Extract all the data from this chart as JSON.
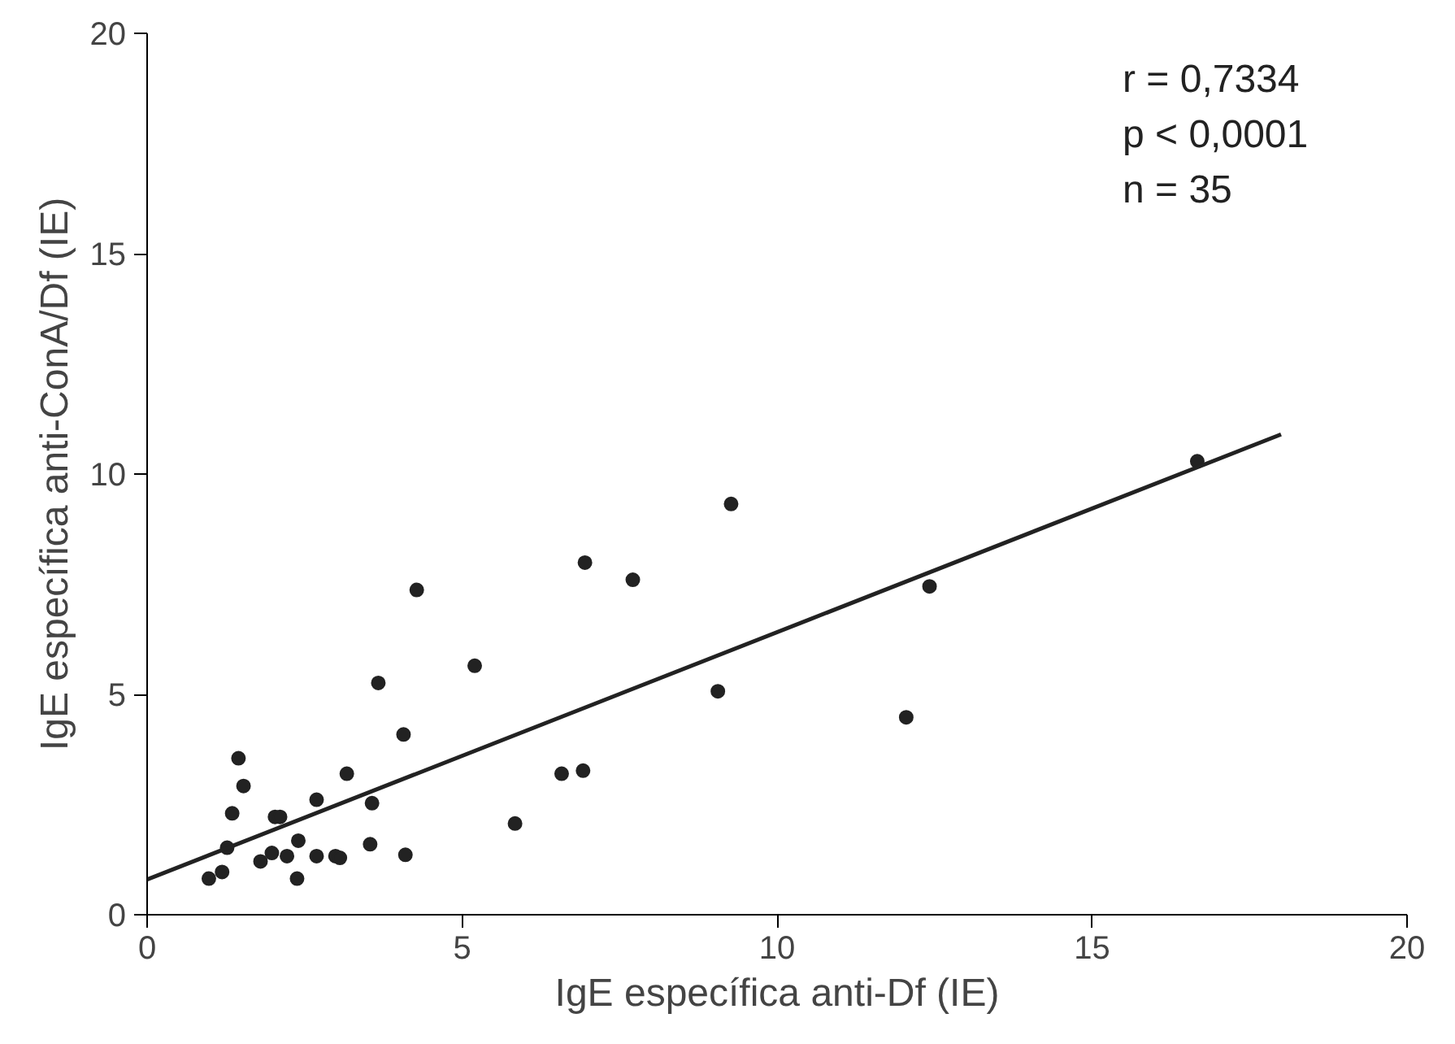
{
  "chart_data": {
    "type": "scatter",
    "xlabel": "IgE específica anti-Df (IE)",
    "ylabel": "IgE específica anti-ConA/Df (IE)",
    "xlim": [
      0,
      20
    ],
    "ylim": [
      0,
      20
    ],
    "xticks": [
      0,
      5,
      10,
      15,
      20
    ],
    "yticks": [
      0,
      5,
      10,
      15,
      20
    ],
    "grid": false,
    "marker": "circle",
    "annotations": [
      "r = 0,7334",
      "p < 0,0001",
      "n = 35"
    ],
    "series": [
      {
        "color": "#222222",
        "x": [
          0.98,
          1.19,
          1.27,
          1.35,
          1.45,
          1.53,
          1.8,
          1.98,
          2.03,
          2.11,
          2.22,
          2.38,
          2.4,
          2.69,
          2.69,
          2.99,
          3.06,
          3.17,
          3.54,
          3.57,
          3.67,
          4.07,
          4.1,
          5.2,
          5.84,
          6.58,
          6.92,
          6.95,
          7.71,
          9.27,
          4.28,
          9.06,
          12.42,
          12.05,
          16.67
        ],
        "values": [
          0.82,
          0.97,
          1.52,
          2.3,
          3.55,
          2.92,
          1.21,
          1.4,
          2.22,
          2.22,
          1.33,
          0.82,
          1.68,
          1.33,
          2.61,
          1.33,
          1.29,
          3.2,
          1.6,
          2.53,
          5.26,
          4.09,
          1.36,
          5.65,
          2.07,
          3.2,
          3.27,
          7.99,
          7.6,
          9.32,
          7.37,
          5.07,
          7.45,
          4.48,
          10.29
        ]
      },
      {
        "type": "line",
        "color": "#222222",
        "x": [
          0,
          18
        ],
        "values": [
          0.8,
          10.9
        ],
        "line_style": "solid",
        "marker": "none"
      }
    ]
  }
}
